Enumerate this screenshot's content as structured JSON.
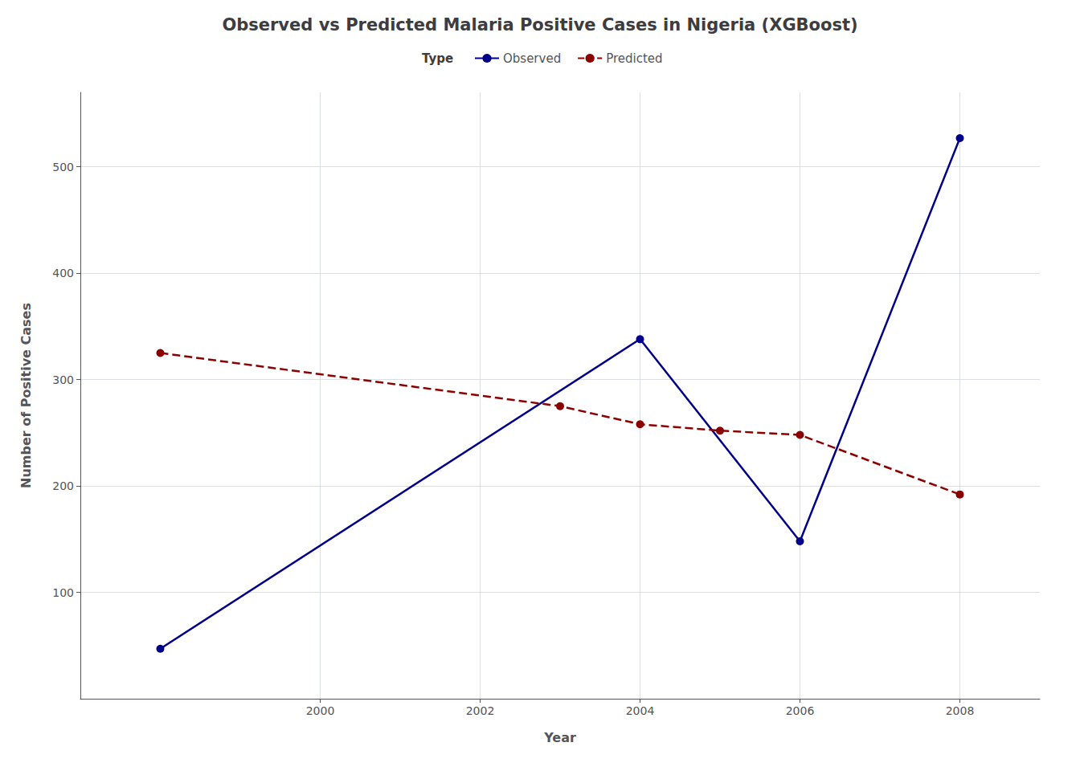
{
  "chart_data": {
    "type": "line",
    "title": "Observed vs Predicted Malaria Positive Cases in Nigeria (XGBoost)",
    "xlabel": "Year",
    "ylabel": "Number of Positive Cases",
    "series": [
      {
        "name": "Observed",
        "color": "#00008B",
        "x": [
          1998,
          2004,
          2006,
          2008
        ],
        "values": [
          47,
          338,
          148,
          527
        ],
        "line_style": "solid",
        "marker": "circle"
      },
      {
        "name": "Predicted",
        "color": "#8B0000",
        "x": [
          1998,
          2003,
          2004,
          2005,
          2006,
          2008
        ],
        "values": [
          325,
          275,
          258,
          252,
          248,
          192
        ],
        "line_style": "dashed",
        "marker": "circle"
      }
    ],
    "xlim": [
      1997.0,
      2009.0
    ],
    "ylim": [
      0,
      570
    ],
    "xticks": [
      2000,
      2002,
      2004,
      2006,
      2008
    ],
    "yticks": [
      100,
      200,
      300,
      400,
      500
    ],
    "grid": true,
    "legend": "top",
    "legend_title": "Type"
  }
}
